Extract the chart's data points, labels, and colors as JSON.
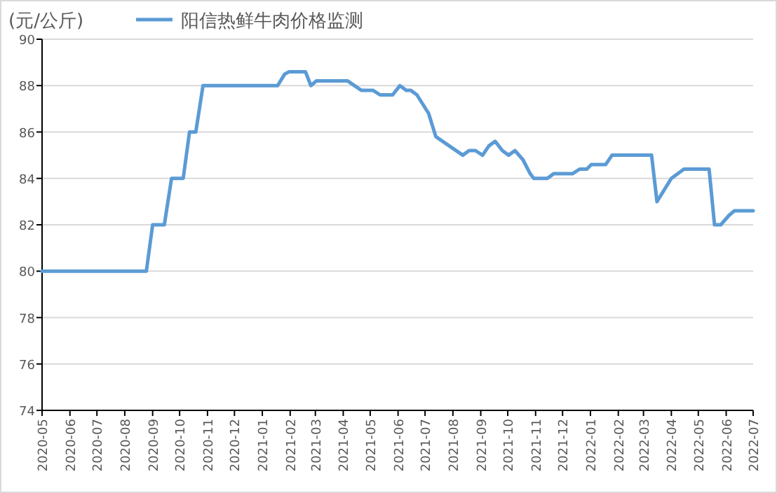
{
  "chart_data": {
    "type": "line",
    "ylabel": "(元/公斤)",
    "legend": "top",
    "grid": "y",
    "line_style": "solid",
    "marker": "none",
    "xlim": [
      "2020-05",
      "2022-07"
    ],
    "ylim": [
      74,
      90
    ],
    "yticks": [
      74,
      76,
      78,
      80,
      82,
      84,
      86,
      88,
      90
    ],
    "xticks": [
      "2020-05",
      "2020-06",
      "2020-07",
      "2020-08",
      "2020-09",
      "2020-10",
      "2020-11",
      "2020-12",
      "2021-01",
      "2021-02",
      "2021-03",
      "2021-04",
      "2021-05",
      "2021-06",
      "2021-07",
      "2021-08",
      "2021-09",
      "2021-10",
      "2021-11",
      "2021-12",
      "2022-01",
      "2022-02",
      "2022-03",
      "2022-04",
      "2022-05",
      "2022-06",
      "2022-07"
    ],
    "series": [
      {
        "name": "阳信热鲜牛肉价格监测",
        "color": "#5b9bd5",
        "x": [
          "2020-05-01",
          "2020-08-25",
          "2020-09-01",
          "2020-09-14",
          "2020-09-22",
          "2020-10-05",
          "2020-10-12",
          "2020-10-19",
          "2020-10-27",
          "2021-01-18",
          "2021-01-26",
          "2021-01-31",
          "2021-02-18",
          "2021-02-24",
          "2021-03-02",
          "2021-04-06",
          "2021-04-21",
          "2021-05-04",
          "2021-05-12",
          "2021-05-26",
          "2021-06-03",
          "2021-06-10",
          "2021-06-15",
          "2021-06-22",
          "2021-07-05",
          "2021-07-13",
          "2021-08-12",
          "2021-08-19",
          "2021-08-26",
          "2021-09-03",
          "2021-09-10",
          "2021-09-17",
          "2021-09-25",
          "2021-10-02",
          "2021-10-09",
          "2021-10-18",
          "2021-10-26",
          "2021-10-30",
          "2021-11-14",
          "2021-11-21",
          "2021-12-12",
          "2021-12-20",
          "2021-12-28",
          "2022-01-02",
          "2022-01-18",
          "2022-01-25",
          "2022-03-10",
          "2022-03-16",
          "2022-04-01",
          "2022-04-15",
          "2022-05-13",
          "2022-05-19",
          "2022-05-26",
          "2022-06-04",
          "2022-06-10",
          "2022-07-01"
        ],
        "values": [
          80,
          80,
          82,
          82,
          84,
          84,
          86,
          86,
          88,
          88,
          88.5,
          88.6,
          88.6,
          88,
          88.2,
          88.2,
          87.8,
          87.8,
          87.6,
          87.6,
          88,
          87.8,
          87.8,
          87.6,
          86.8,
          85.8,
          85,
          85.2,
          85.2,
          85,
          85.4,
          85.6,
          85.2,
          85,
          85.2,
          84.8,
          84.2,
          84,
          84,
          84.2,
          84.2,
          84.4,
          84.4,
          84.6,
          84.6,
          85,
          85,
          83,
          84,
          84.4,
          84.4,
          82,
          82,
          82.4,
          82.6,
          82.6
        ]
      }
    ]
  }
}
